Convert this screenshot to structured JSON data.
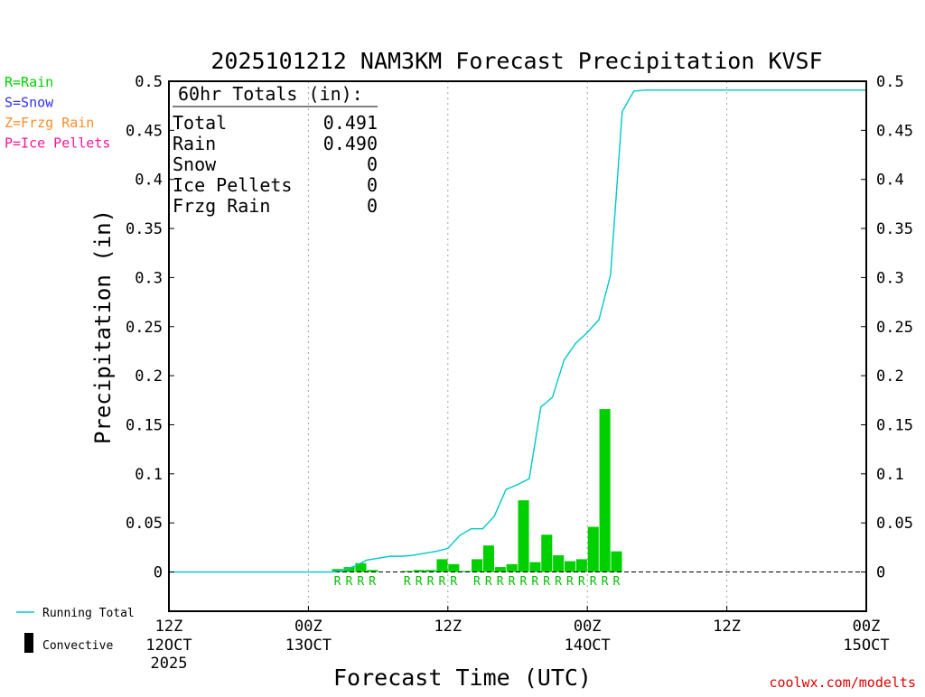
{
  "chart_data": {
    "type": "bar",
    "title": "2025101212 NAM3KM Forecast Precipitation KVSF",
    "xlabel": "Forecast Time (UTC)",
    "ylabel": "Precipitation (in)",
    "ylim": [
      -0.04,
      0.5
    ],
    "xlim": [
      0,
      60
    ],
    "yticks": [
      {
        "value": 0.5,
        "label": "0.5"
      },
      {
        "value": 0.45,
        "label": "0.45"
      },
      {
        "value": 0.4,
        "label": "0.4"
      },
      {
        "value": 0.35,
        "label": "0.35"
      },
      {
        "value": 0.3,
        "label": "0.3"
      },
      {
        "value": 0.25,
        "label": "0.25"
      },
      {
        "value": 0.2,
        "label": "0.2"
      },
      {
        "value": 0.15,
        "label": "0.15"
      },
      {
        "value": 0.1,
        "label": "0.1"
      },
      {
        "value": 0.05,
        "label": "0.05"
      },
      {
        "value": 0,
        "label": "0"
      }
    ],
    "xticks": [
      {
        "hour": 0,
        "line1": "12Z",
        "line2": "12OCT",
        "line3": "2025"
      },
      {
        "hour": 12,
        "line1": "00Z",
        "line2": "13OCT",
        "line3": ""
      },
      {
        "hour": 24,
        "line1": "12Z",
        "line2": "",
        "line3": ""
      },
      {
        "hour": 36,
        "line1": "00Z",
        "line2": "14OCT",
        "line3": ""
      },
      {
        "hour": 48,
        "line1": "12Z",
        "line2": "",
        "line3": ""
      },
      {
        "hour": 60,
        "line1": "00Z",
        "line2": "15OCT",
        "line3": ""
      }
    ],
    "gridlines_hours": [
      12,
      24,
      36,
      48
    ],
    "bars_hourly": {
      "hours": [
        15,
        16,
        17,
        18,
        21,
        22,
        23,
        24,
        25,
        26,
        27,
        28,
        29,
        30,
        31,
        32,
        33,
        34,
        35,
        36,
        37,
        38,
        39,
        40
      ],
      "values": [
        0.003,
        0.005,
        0.009,
        0.002,
        0.001,
        0.002,
        0.002,
        0.013,
        0.008,
        0.001,
        0.013,
        0.027,
        0.005,
        0.008,
        0.073,
        0.01,
        0.038,
        0.017,
        0.011,
        0.013,
        0.046,
        0.166,
        0.021,
        0.0
      ],
      "color": "#00d000"
    },
    "running_total": {
      "name": "Running Total",
      "color": "#00c8c8",
      "hours": [
        0,
        14,
        15,
        16,
        17,
        18,
        19,
        20,
        21,
        22,
        23,
        24,
        25,
        26,
        27,
        28,
        29,
        30,
        31,
        32,
        33,
        34,
        35,
        36,
        37,
        38,
        39,
        40,
        41,
        42,
        43,
        60
      ],
      "values": [
        0,
        0,
        0.002,
        0.006,
        0.012,
        0.014,
        0.016,
        0.016,
        0.017,
        0.019,
        0.021,
        0.024,
        0.037,
        0.044,
        0.044,
        0.057,
        0.084,
        0.089,
        0.095,
        0.168,
        0.178,
        0.216,
        0.233,
        0.244,
        0.257,
        0.303,
        0.469,
        0.49,
        0.491,
        0.491,
        0.491,
        0.491
      ]
    },
    "ptype_markers": {
      "letter": "R",
      "color": "#00c000",
      "hours": [
        15,
        16,
        17,
        18,
        21,
        22,
        23,
        24,
        25,
        27,
        28,
        29,
        30,
        31,
        32,
        33,
        34,
        35,
        36,
        37,
        38,
        39
      ]
    },
    "totals_box": {
      "header": "60hr Totals (in):",
      "rows": [
        {
          "label": "Total",
          "value": "0.491"
        },
        {
          "label": "Rain",
          "value": "0.490"
        },
        {
          "label": "Snow",
          "value": "0"
        },
        {
          "label": "Ice Pellets",
          "value": "0"
        },
        {
          "label": "Frzg Rain",
          "value": "0"
        }
      ]
    },
    "ptype_legend": [
      {
        "text": "R=Rain",
        "color": "#00d000"
      },
      {
        "text": "S=Snow",
        "color": "#3030ff"
      },
      {
        "text": "Z=Frzg Rain",
        "color": "#ff8c28"
      },
      {
        "text": "P=Ice Pellets",
        "color": "#ff1493"
      }
    ],
    "legend_bottom": {
      "running_total": "Running Total",
      "convective": "Convective"
    },
    "credit": "coolwx.com/modelts"
  }
}
